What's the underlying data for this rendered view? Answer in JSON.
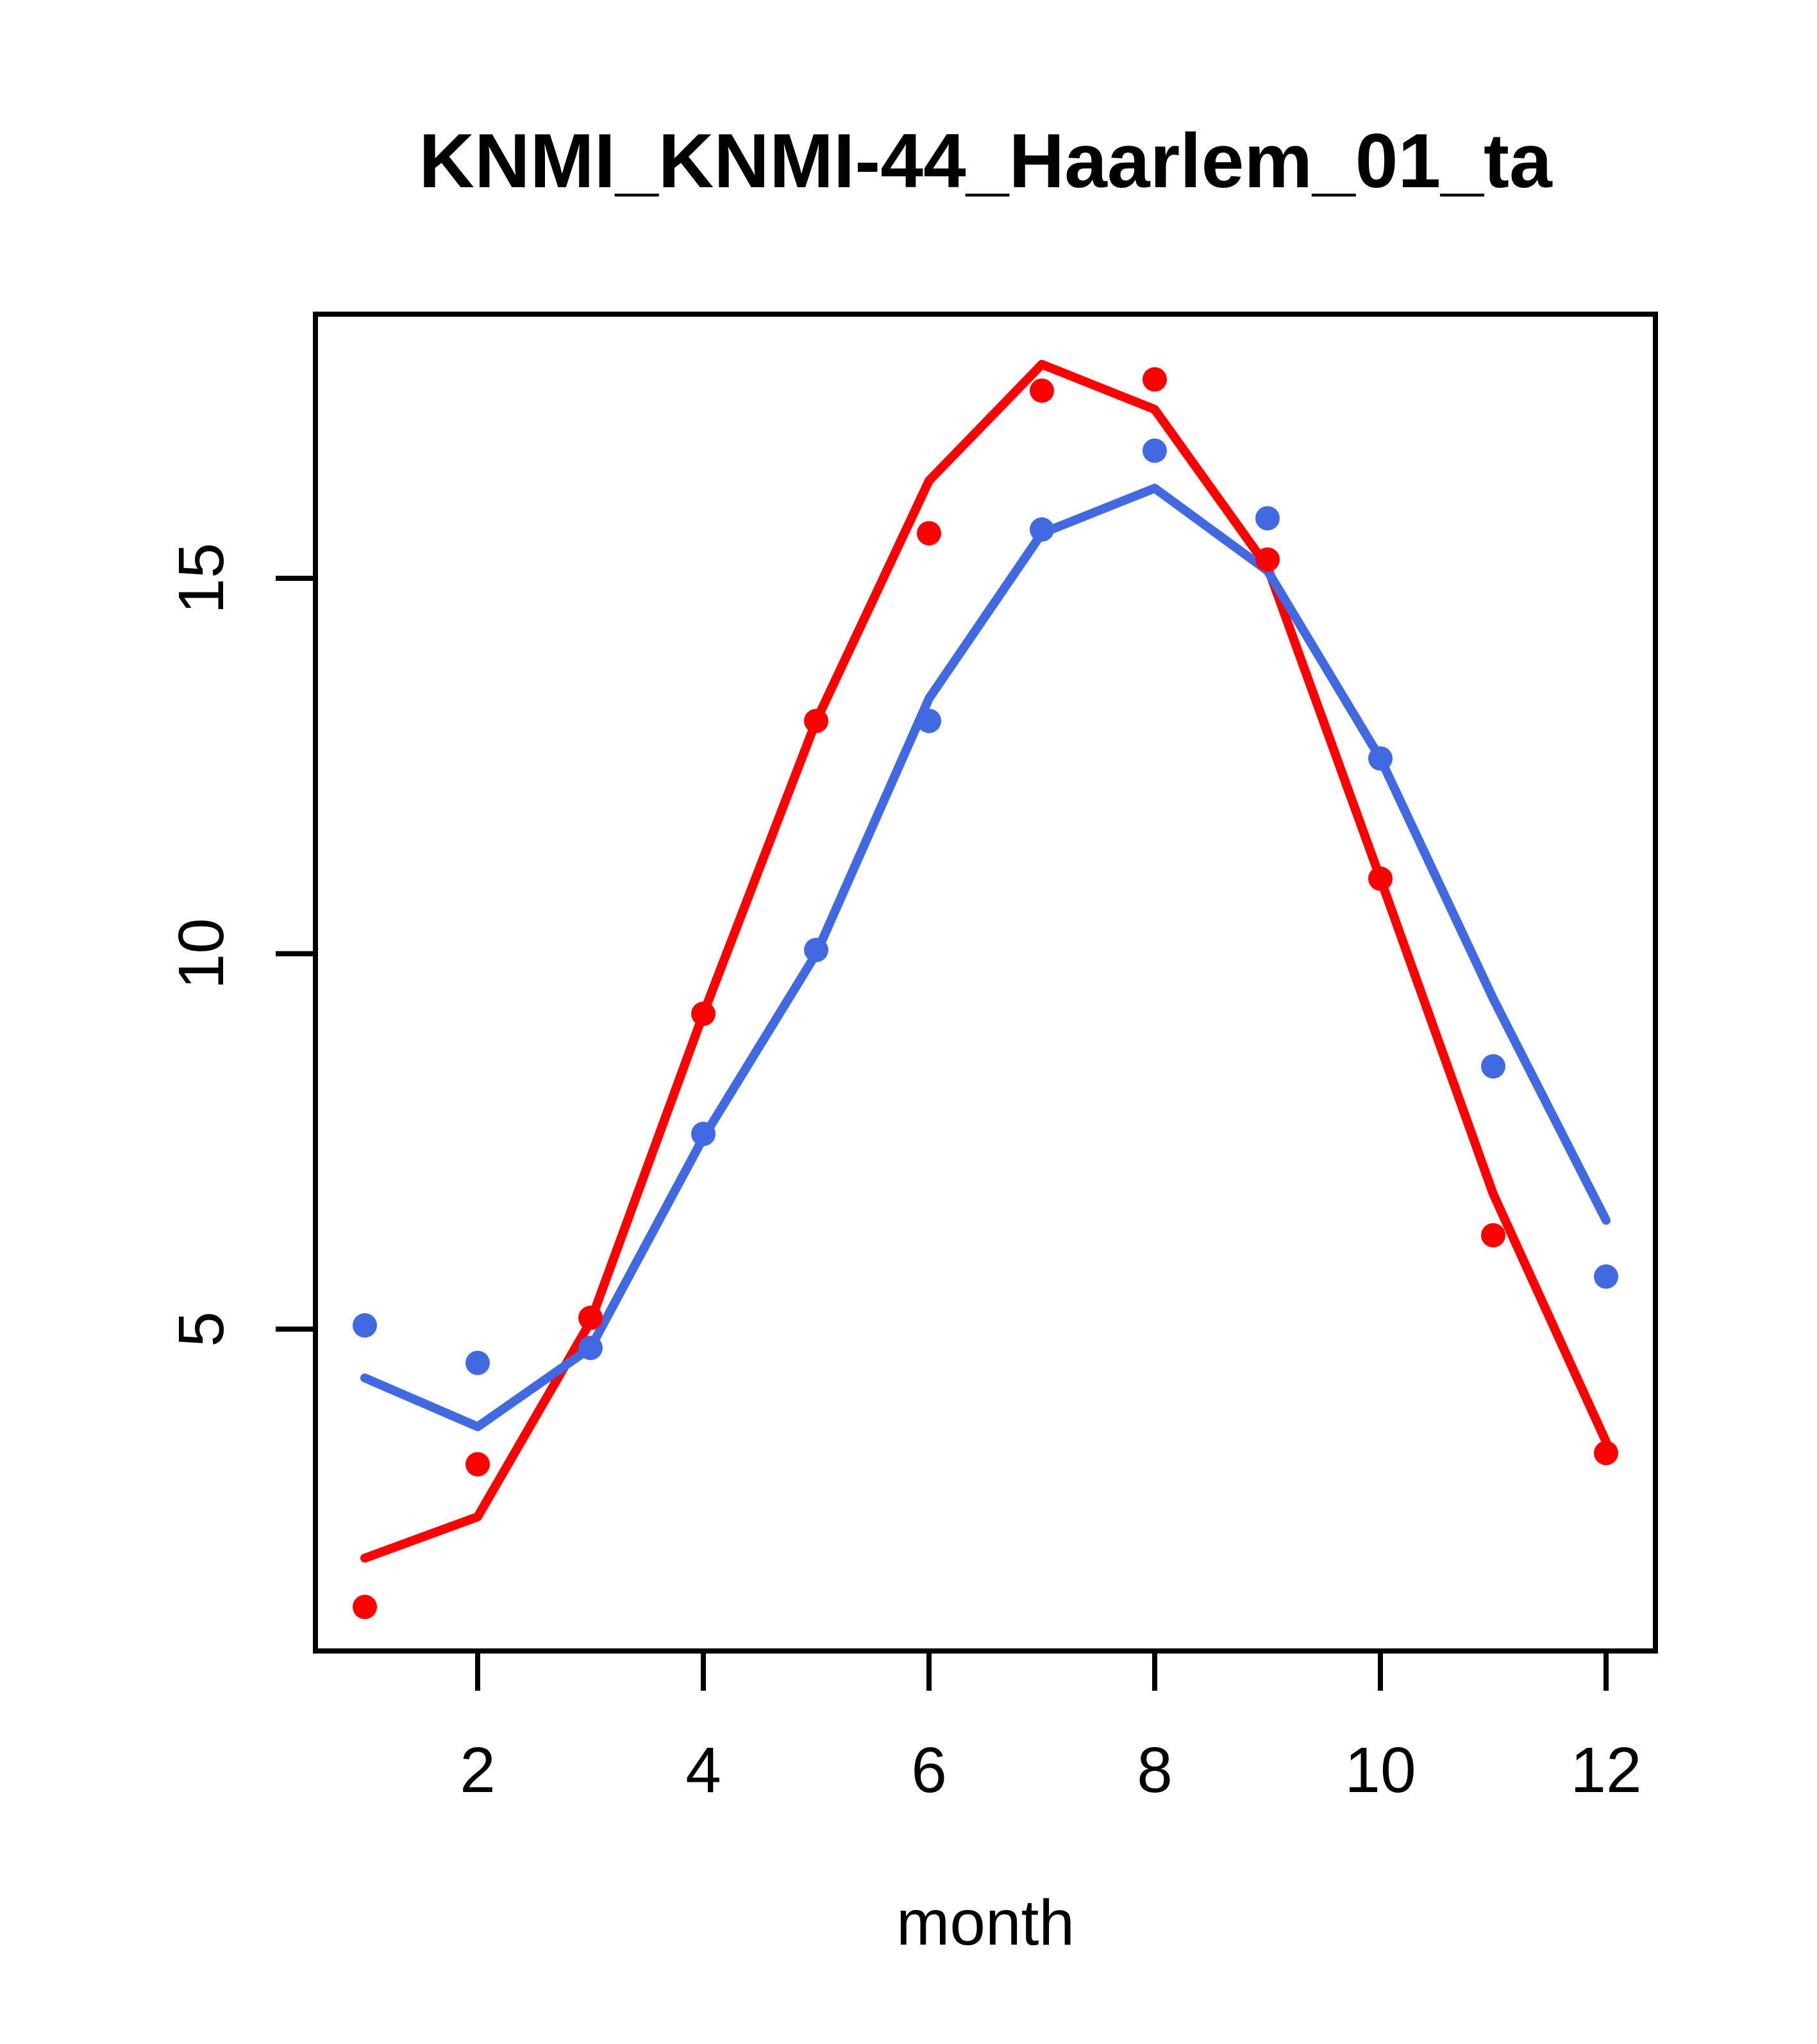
{
  "window": {
    "background_color": "#ffffff",
    "plot_border_color": "#000000"
  },
  "chart_data": {
    "type": "scatter",
    "title": "KNMI_KNMI-44_Haarlem_01_ta",
    "xlabel": "month",
    "ylabel": "",
    "x": [
      1,
      2,
      3,
      4,
      5,
      6,
      7,
      8,
      9,
      10,
      11,
      12
    ],
    "x_tick_labels": [
      2,
      4,
      6,
      8,
      10,
      12
    ],
    "y_tick_labels": [
      5,
      10,
      15
    ],
    "xlim": [
      0.56,
      12.44
    ],
    "ylim": [
      0.7,
      18.5
    ],
    "grid": false,
    "legend_position": "none",
    "series": [
      {
        "name": "red-points",
        "kind": "scatter",
        "color": "#ff0000",
        "values": [
          1.3,
          3.2,
          5.15,
          9.2,
          13.1,
          15.6,
          17.5,
          17.65,
          15.25,
          11.0,
          6.25,
          3.35
        ]
      },
      {
        "name": "blue-points",
        "kind": "scatter",
        "color": "#4169e1",
        "values": [
          5.05,
          4.55,
          4.75,
          7.6,
          10.05,
          13.1,
          15.65,
          16.7,
          15.8,
          12.6,
          8.5,
          5.7
        ]
      },
      {
        "name": "red-trend-line",
        "kind": "line",
        "color": "#ff0000",
        "values": [
          1.95,
          2.5,
          5.1,
          9.2,
          13.1,
          16.3,
          17.85,
          17.25,
          15.15,
          11.0,
          6.8,
          3.5
        ]
      },
      {
        "name": "blue-trend-line",
        "kind": "line",
        "color": "#4169e1",
        "values": [
          4.35,
          3.7,
          4.75,
          7.55,
          10.0,
          13.4,
          15.6,
          16.2,
          15.1,
          12.6,
          9.4,
          6.45
        ]
      }
    ]
  }
}
